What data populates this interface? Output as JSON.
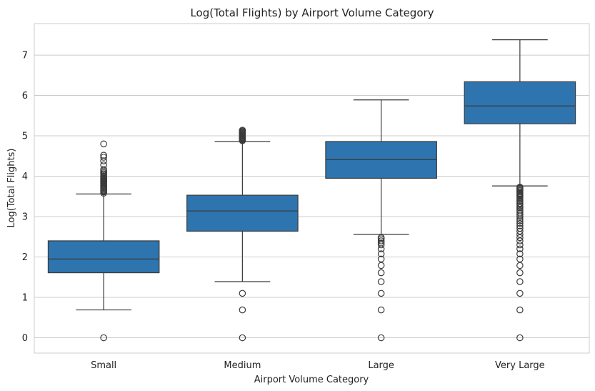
{
  "chart_data": {
    "type": "box",
    "title": "Log(Total Flights) by Airport Volume Category",
    "xlabel": "Airport Volume Category",
    "ylabel": "Log(Total Flights)",
    "ylim": [
      -0.38,
      7.78
    ],
    "yticks": [
      0,
      1,
      2,
      3,
      4,
      5,
      6,
      7
    ],
    "grid": true,
    "box_color": "#2e75b0",
    "line_color": "#3a3a3a",
    "categories": [
      "Small",
      "Medium",
      "Large",
      "Very Large"
    ],
    "boxes": [
      {
        "category": "Small",
        "whisker_low": 0.69,
        "q1": 1.61,
        "median": 1.95,
        "q3": 2.4,
        "whisker_high": 3.56,
        "outliers": [
          0,
          3.58,
          3.61,
          3.64,
          3.66,
          3.69,
          3.71,
          3.74,
          3.76,
          3.78,
          3.81,
          3.83,
          3.85,
          3.87,
          3.89,
          3.91,
          3.93,
          3.95,
          3.97,
          4.0,
          4.03,
          4.06,
          4.09,
          4.13,
          4.17,
          4.28,
          4.38,
          4.47,
          4.52,
          4.8
        ]
      },
      {
        "category": "Medium",
        "whisker_low": 1.39,
        "q1": 2.64,
        "median": 3.14,
        "q3": 3.53,
        "whisker_high": 4.86,
        "outliers": [
          0,
          0.69,
          1.1,
          4.88,
          4.9,
          4.92,
          4.94,
          4.96,
          4.98,
          5.0,
          5.02,
          5.04,
          5.06,
          5.08,
          5.1,
          5.12,
          5.14
        ]
      },
      {
        "category": "Large",
        "whisker_low": 2.56,
        "q1": 3.95,
        "median": 4.41,
        "q3": 4.86,
        "whisker_high": 5.89,
        "outliers": [
          0,
          0.69,
          1.1,
          1.39,
          1.61,
          1.79,
          1.95,
          2.08,
          2.2,
          2.3,
          2.35,
          2.4,
          2.45,
          2.48
        ]
      },
      {
        "category": "Very Large",
        "whisker_low": 3.76,
        "q1": 5.3,
        "median": 5.74,
        "q3": 6.34,
        "whisker_high": 7.38,
        "outliers": [
          0,
          0.69,
          1.1,
          1.39,
          1.61,
          1.79,
          1.95,
          2.08,
          2.2,
          2.3,
          2.4,
          2.48,
          2.56,
          2.64,
          2.71,
          2.77,
          2.83,
          2.89,
          2.94,
          3.0,
          3.04,
          3.09,
          3.14,
          3.18,
          3.22,
          3.26,
          3.3,
          3.33,
          3.37,
          3.4,
          3.43,
          3.47,
          3.5,
          3.53,
          3.56,
          3.58,
          3.61,
          3.64,
          3.66,
          3.69,
          3.71,
          3.73
        ]
      }
    ]
  }
}
